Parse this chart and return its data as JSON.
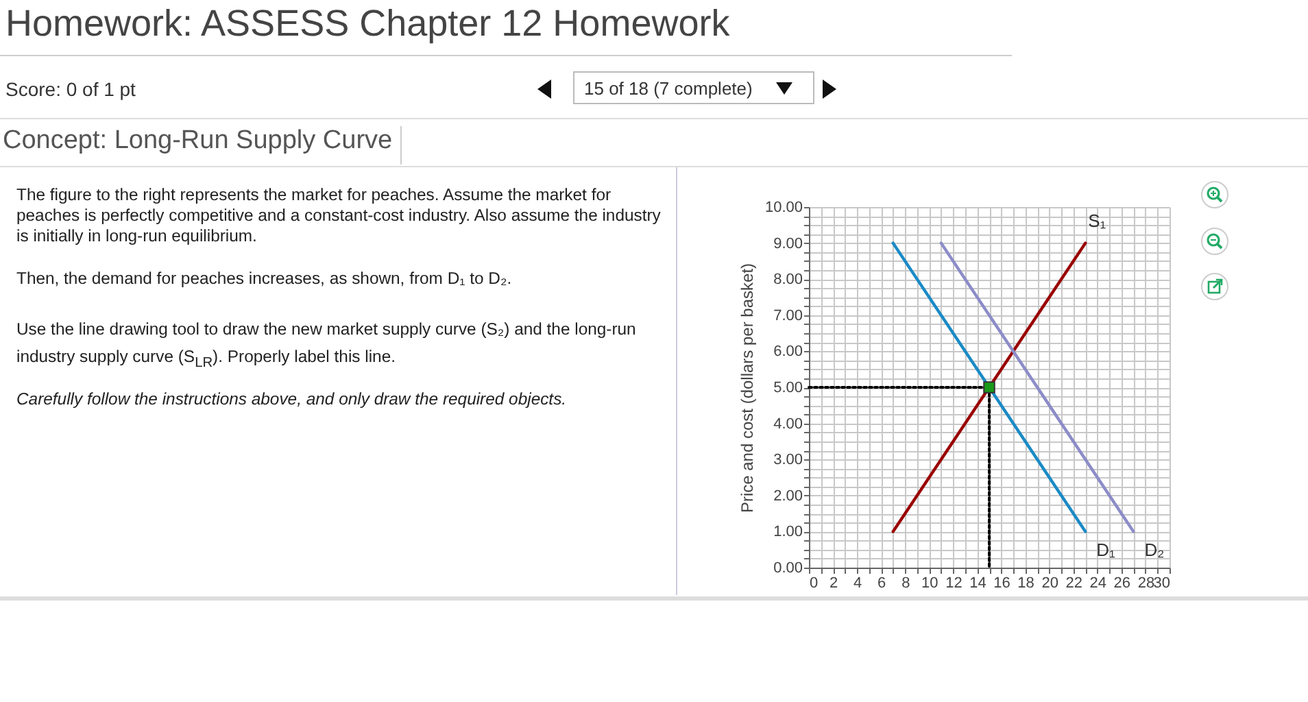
{
  "chart_data": {
    "type": "line",
    "title": "Homework: ASSESS Chapter 12 Homework",
    "subtitle": "Concept: Long-Run Supply Curve",
    "annotations": [
      "Score: 0 of 1 pt",
      "15 of 18 (7 complete)",
      "The figure to the right represents the market for peaches. Assume the market for peaches is perfectly competitive and a constant-cost industry. Also assume the industry is initially in long-run equilibrium.",
      "Then, the demand for peaches increases, as shown, from D₁ to D₂.",
      "Use the line drawing tool to draw the new market supply curve (S₂) and the long-run industry supply curve (S$_{LR}$). Properly label this line.",
      "Carefully follow the instructions above, and only draw the required objects."
    ],
    "ylabel": "Price and cost (dollars per basket)",
    "xlim": [
      0,
      30
    ],
    "ylim": [
      0,
      10
    ],
    "xticks": [
      0,
      {
        "value": 1,
        "label": null
      },
      2,
      {
        "value": 3,
        "label": null
      },
      4,
      {
        "value": 5,
        "label": null
      },
      6,
      {
        "value": 7,
        "label": null
      },
      8,
      {
        "value": 9,
        "label": null
      },
      10,
      {
        "value": 11,
        "label": null
      },
      12,
      {
        "value": 13,
        "label": null
      },
      14,
      {
        "value": 15,
        "label": null
      },
      16,
      {
        "value": 17,
        "label": null
      },
      18,
      {
        "value": 19,
        "label": null
      },
      20,
      {
        "value": 21,
        "label": null
      },
      22,
      {
        "value": 23,
        "label": null
      },
      24,
      {
        "value": 25,
        "label": null
      },
      26,
      {
        "value": 27,
        "label": null
      },
      28,
      {
        "value": 29,
        "label": null
      },
      30
    ],
    "yticks": [
      {
        "value": 0,
        "label": "0.00"
      },
      {
        "value": 0.25,
        "label": null
      },
      {
        "value": 0.5,
        "label": null
      },
      {
        "value": 0.75,
        "label": null
      },
      {
        "value": 1,
        "label": "1.00"
      },
      {
        "value": 1.25,
        "label": null
      },
      {
        "value": 1.5,
        "label": null
      },
      {
        "value": 1.75,
        "label": null
      },
      {
        "value": 2,
        "label": "2.00"
      },
      {
        "value": 2.25,
        "label": null
      },
      {
        "value": 2.5,
        "label": null
      },
      {
        "value": 2.75,
        "label": null
      },
      {
        "value": 3,
        "label": "3.00"
      },
      {
        "value": 3.25,
        "label": null
      },
      {
        "value": 3.5,
        "label": null
      },
      {
        "value": 3.75,
        "label": null
      },
      {
        "value": 4,
        "label": "4.00"
      },
      {
        "value": 4.25,
        "label": null
      },
      {
        "value": 4.5,
        "label": null
      },
      {
        "value": 4.75,
        "label": null
      },
      {
        "value": 5,
        "label": "5.00"
      },
      {
        "value": 5.25,
        "label": null
      },
      {
        "value": 5.5,
        "label": null
      },
      {
        "value": 5.75,
        "label": null
      },
      {
        "value": 6,
        "label": "6.00"
      },
      {
        "value": 6.25,
        "label": null
      },
      {
        "value": 6.5,
        "label": null
      },
      {
        "value": 6.75,
        "label": null
      },
      {
        "value": 7,
        "label": "7.00"
      },
      {
        "value": 7.25,
        "label": null
      },
      {
        "value": 7.5,
        "label": null
      },
      {
        "value": 7.75,
        "label": null
      },
      {
        "value": 8,
        "label": "8.00"
      },
      {
        "value": 8.25,
        "label": null
      },
      {
        "value": 8.5,
        "label": null
      },
      {
        "value": 8.75,
        "label": null
      },
      {
        "value": 9,
        "label": "9.00"
      },
      {
        "value": 9.25,
        "label": null
      },
      {
        "value": 9.5,
        "label": null
      },
      {
        "value": 9.75,
        "label": null
      },
      {
        "value": 10,
        "label": "10.00"
      }
    ],
    "grid": true,
    "series": [
      {
        "color": "#000000",
        "line_style": "dotted",
        "x": [
          0,
          15,
          15
        ],
        "values": [
          5,
          5,
          0
        ]
      },
      {
        "name": "S₁",
        "color": "#990000",
        "x": [
          7,
          23
        ],
        "values": [
          1,
          9
        ]
      },
      {
        "name": "D₁",
        "color": "#1a8ac6",
        "x": [
          7,
          23
        ],
        "values": [
          9,
          1
        ]
      },
      {
        "name": "D₂",
        "color": "#8c8cc8",
        "x": [
          11,
          27
        ],
        "values": [
          9,
          1
        ]
      },
      {
        "type": "scatter",
        "color": "#1a9a1a",
        "marker": "square",
        "x": [
          15
        ],
        "values": [
          5
        ]
      }
    ]
  }
}
